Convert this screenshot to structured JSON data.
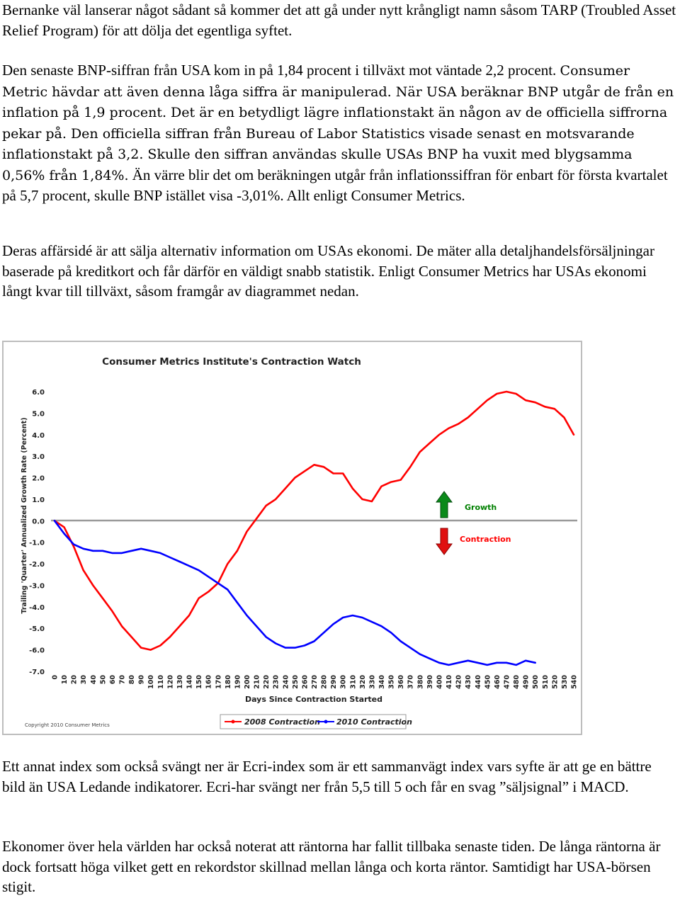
{
  "paragraphs": [
    "Bernanke väl lanserar något sådant så kommer det att gå under nytt krångligt namn såsom TARP (Troubled Asset Relief Program) för att dölja det egentliga syftet.",
    "Den senaste BNP-siffran från USA kom in på 1,84 procent i tillväxt mot väntade 2,2 procent.",
    "Deras affärsidé är att sälja alternativ information om USAs ekonomi. De mäter alla detaljhandelsförsäljningar baserade på kreditkort och får därför en väldigt snabb statistik. Enligt Consumer Metrics har USAs ekonomi långt kvar till tillväxt, såsom framgår av diagrammet nedan.",
    "Ett annat index som också svängt ner är Ecri-index som är ett sammanvägt index vars syfte är att ge en bättre bild än USA Ledande indikatorer. Ecri-har svängt ner från 5,5 till 5 och får en svag ”säljsignal” i MACD.",
    "Ekonomer över hela världen har också noterat att räntorna har fallit tillbaka senaste tiden. De långa räntorna är dock fortsatt höga vilket gett en rekordstor skillnad mellan långa och korta räntor. Samtidigt har USA-börsen stigit."
  ],
  "paragraph2_sans": "Consumer Metric hävdar att även denna låga siffra är manipulerad. När USA beräknar BNP utgår de från en inflation på 1,9 procent. Det är en betydligt lägre inflationstakt än någon av de officiella siffrorna pekar på. Den officiella siffran från Bureau of Labor Statistics visade senast en motsvarande inflationstakt på 3,2. Skulle den siffran användas skulle USAs BNP ha vuxit med blygsamma 0,56% från 1,84%.",
  "paragraph2_tail": "Än värre blir det om beräkningen utgår från inflationssiffran för enbart för första kvartalet på 5,7 procent, skulle BNP istället visa -3,01%. Allt enligt Consumer Metrics.",
  "chart_data": {
    "type": "line",
    "title": "Consumer Metrics Institute's Contraction Watch",
    "xlabel": "Days Since Contraction Started",
    "ylabel": "Trailing 'Quarter' Annualized Growth Rate (Percent)",
    "xlim": [
      0,
      540
    ],
    "ylim": [
      -7.0,
      6.0
    ],
    "x_ticks": [
      0,
      10,
      20,
      30,
      40,
      50,
      60,
      70,
      80,
      90,
      100,
      110,
      120,
      130,
      140,
      150,
      160,
      170,
      180,
      190,
      200,
      210,
      220,
      230,
      240,
      250,
      260,
      270,
      280,
      290,
      300,
      310,
      320,
      330,
      340,
      350,
      360,
      370,
      380,
      390,
      400,
      410,
      420,
      430,
      440,
      450,
      460,
      470,
      480,
      490,
      500,
      510,
      520,
      530,
      540
    ],
    "y_ticks": [
      "6.0",
      "5.0",
      "4.0",
      "3.0",
      "2.0",
      "1.0",
      "0.0",
      "-1.0",
      "-2.0",
      "-3.0",
      "-4.0",
      "-5.0",
      "-6.0",
      "-7.0"
    ],
    "grid": false,
    "series": [
      {
        "name": "2008 Contraction",
        "color": "#ff0000",
        "x": [
          0,
          10,
          20,
          30,
          40,
          50,
          60,
          70,
          80,
          90,
          100,
          110,
          120,
          130,
          140,
          150,
          160,
          170,
          180,
          190,
          200,
          210,
          220,
          230,
          240,
          250,
          260,
          270,
          280,
          290,
          300,
          310,
          320,
          330,
          340,
          350,
          360,
          370,
          380,
          390,
          400,
          410,
          420,
          430,
          440,
          450,
          460,
          470,
          480,
          490,
          500,
          510,
          520,
          530,
          540
        ],
        "y": [
          0.0,
          -0.3,
          -1.2,
          -2.3,
          -3.0,
          -3.6,
          -4.2,
          -4.9,
          -5.4,
          -5.9,
          -6.0,
          -5.8,
          -5.4,
          -4.9,
          -4.4,
          -3.6,
          -3.3,
          -2.9,
          -2.0,
          -1.4,
          -0.5,
          0.1,
          0.7,
          1.0,
          1.5,
          2.0,
          2.3,
          2.6,
          2.5,
          2.2,
          2.2,
          1.5,
          1.0,
          0.9,
          1.6,
          1.8,
          1.9,
          2.5,
          3.2,
          3.6,
          4.0,
          4.3,
          4.5,
          4.8,
          5.2,
          5.6,
          5.9,
          6.0,
          5.9,
          5.6,
          5.5,
          5.3,
          5.2,
          4.8,
          4.0
        ]
      },
      {
        "name": "2010 Contraction",
        "color": "#0000ff",
        "x": [
          0,
          10,
          20,
          30,
          40,
          50,
          60,
          70,
          80,
          90,
          100,
          110,
          120,
          130,
          140,
          150,
          160,
          170,
          180,
          190,
          200,
          210,
          220,
          230,
          240,
          250,
          260,
          270,
          280,
          290,
          300,
          310,
          320,
          330,
          340,
          350,
          360,
          370,
          380,
          390,
          400,
          410,
          420,
          430,
          440,
          450,
          460,
          470,
          480,
          490,
          500
        ],
        "y": [
          0.0,
          -0.6,
          -1.1,
          -1.3,
          -1.4,
          -1.4,
          -1.5,
          -1.5,
          -1.4,
          -1.3,
          -1.4,
          -1.5,
          -1.7,
          -1.9,
          -2.1,
          -2.3,
          -2.6,
          -2.9,
          -3.2,
          -3.8,
          -4.4,
          -4.9,
          -5.4,
          -5.7,
          -5.9,
          -5.9,
          -5.8,
          -5.6,
          -5.2,
          -4.8,
          -4.5,
          -4.4,
          -4.5,
          -4.7,
          -4.9,
          -5.2,
          -5.6,
          -5.9,
          -6.2,
          -6.4,
          -6.6,
          -6.7,
          -6.6,
          -6.5,
          -6.6,
          -6.7,
          -6.6,
          -6.6,
          -6.7,
          -6.5,
          -6.6
        ]
      }
    ],
    "annotations": [
      {
        "label": "Growth",
        "color": "#008000",
        "arrow": "up"
      },
      {
        "label": "Contraction",
        "color": "#ff0000",
        "arrow": "down"
      }
    ],
    "copyright": "Copyright 2010 Consumer Metrics",
    "legend_position": "bottom-center"
  }
}
